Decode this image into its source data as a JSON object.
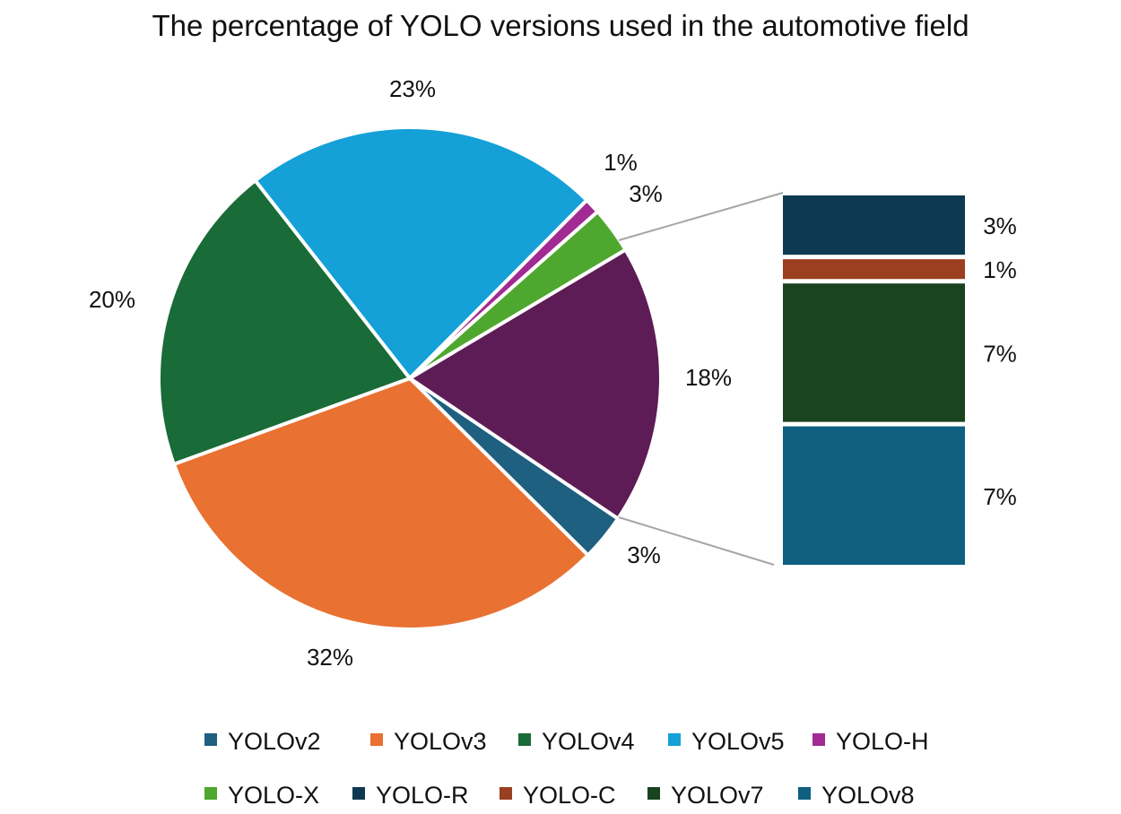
{
  "chart_data": {
    "type": "pie-of-bar",
    "title": "The percentage of YOLO versions used in the automotive field",
    "pie": [
      {
        "name": "YOLOv2",
        "value": 3,
        "label": "3%",
        "color": "#1f5f80"
      },
      {
        "name": "YOLOv3",
        "value": 32,
        "label": "32%",
        "color": "#e97132"
      },
      {
        "name": "YOLOv4",
        "value": 20,
        "label": "20%",
        "color": "#196b37"
      },
      {
        "name": "YOLOv5",
        "value": 23,
        "label": "23%",
        "color": "#15a0d8"
      },
      {
        "name": "YOLO-H",
        "value": 1,
        "label": "1%",
        "color": "#a12b93"
      },
      {
        "name": "YOLO-X",
        "value": 3,
        "label": "3%",
        "color": "#4ea72e"
      },
      {
        "name": "",
        "value": 18,
        "label": "18%",
        "color": "#5e1c56"
      }
    ],
    "bar": [
      {
        "name": "YOLO-R",
        "value": 3,
        "label": "3%",
        "color": "#0d3a50"
      },
      {
        "name": "YOLO-C",
        "value": 1,
        "label": "1%",
        "color": "#9a3f1f"
      },
      {
        "name": "YOLOv7",
        "value": 7,
        "label": "7%",
        "color": "#1a4320"
      },
      {
        "name": "YOLOv8",
        "value": 7,
        "label": "7%",
        "color": "#0f5f80"
      }
    ],
    "legend": {
      "placement": "bottom",
      "entries": [
        {
          "name": "YOLOv2",
          "color": "#1f5f80"
        },
        {
          "name": "YOLOv3",
          "color": "#e97132"
        },
        {
          "name": "YOLOv4",
          "color": "#196b37"
        },
        {
          "name": "YOLOv5",
          "color": "#15a0d8"
        },
        {
          "name": "YOLO-H",
          "color": "#a12b93"
        },
        {
          "name": "YOLO-X",
          "color": "#4ea72e"
        },
        {
          "name": "YOLO-R",
          "color": "#0d3a50"
        },
        {
          "name": "YOLO-C",
          "color": "#9a3f1f"
        },
        {
          "name": "YOLOv7",
          "color": "#1a4320"
        },
        {
          "name": "YOLOv8",
          "color": "#0f5f80"
        }
      ]
    }
  }
}
